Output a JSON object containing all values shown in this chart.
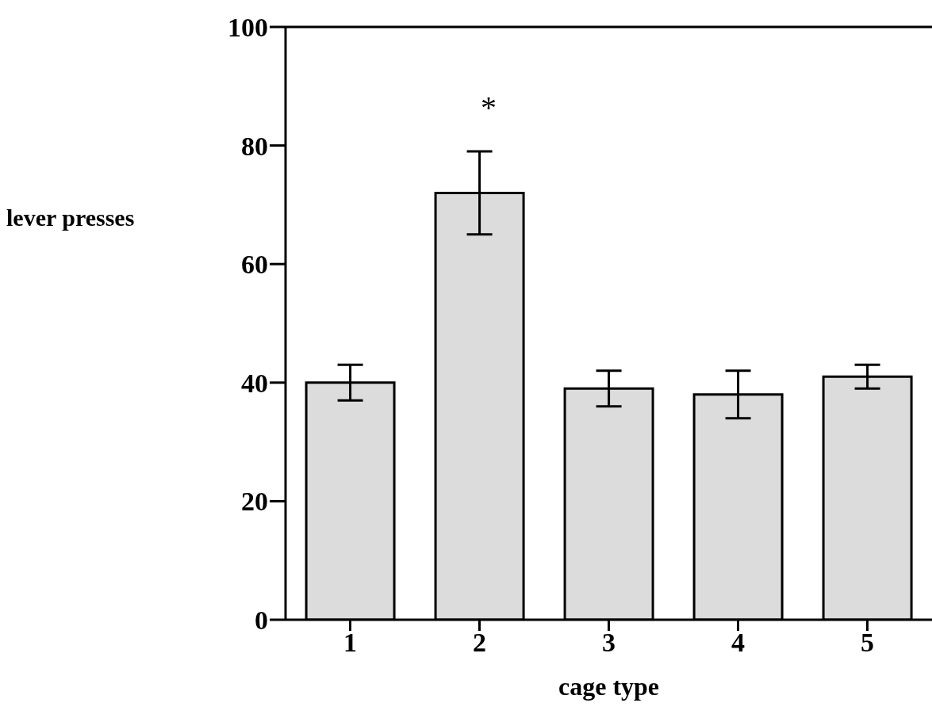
{
  "chart_data": {
    "type": "bar",
    "xlabel": "cage type",
    "ylabel": "lever presses",
    "categories": [
      "1",
      "2",
      "3",
      "4",
      "5"
    ],
    "values": [
      40,
      72,
      39,
      38,
      41
    ],
    "errors": [
      [
        37,
        43
      ],
      [
        65,
        79
      ],
      [
        36,
        42
      ],
      [
        34,
        42
      ],
      [
        39,
        43
      ]
    ],
    "color": "#dcdcdc",
    "ylim": [
      0,
      100
    ],
    "yticks": [
      0,
      20,
      40,
      60,
      80,
      100
    ],
    "annotations": [
      "*"
    ]
  }
}
